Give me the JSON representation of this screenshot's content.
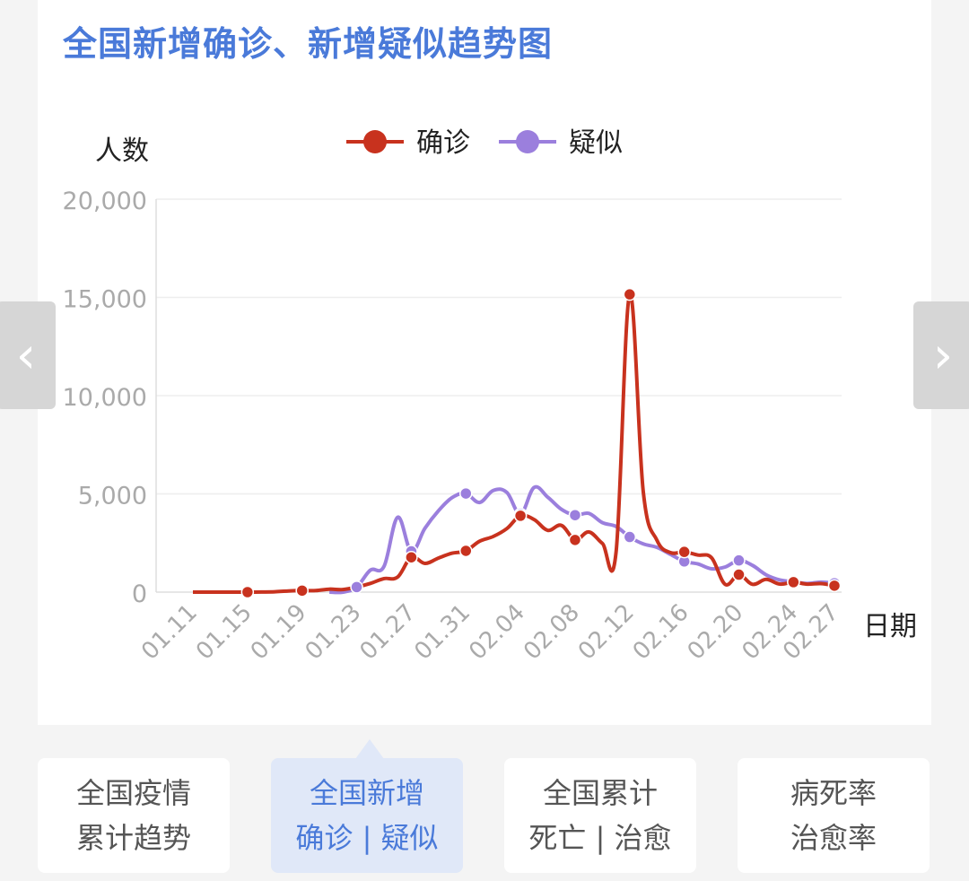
{
  "title": "全国新增确诊、新增疑似趋势图",
  "nav": {
    "prev_icon": "‹",
    "next_icon": "›"
  },
  "tabs": [
    {
      "line1": "全国疫情",
      "line2": "累计趋势",
      "active": false
    },
    {
      "line1": "全国新增",
      "line2": "确诊 | 疑似",
      "active": true
    },
    {
      "line1": "全国累计",
      "line2": "死亡 | 治愈",
      "active": false
    },
    {
      "line1": "病死率",
      "line2": "治愈率",
      "active": false
    }
  ],
  "colors": {
    "title": "#4a7ad9",
    "confirmed": "#c8321e",
    "suspected": "#9b7fdd",
    "axis_text": "#aaaaaa",
    "grid": "#eeeeee"
  },
  "chart_data": {
    "type": "line",
    "title": "",
    "ylabel": "人数",
    "xlabel": "日期",
    "ylim": [
      0,
      20000
    ],
    "yticks": [
      0,
      5000,
      10000,
      15000,
      20000
    ],
    "ytick_labels": [
      "0",
      "5,000",
      "10,000",
      "15,000",
      "20,000"
    ],
    "xtick_labels": [
      "01.11",
      "01.15",
      "01.19",
      "01.23",
      "01.27",
      "01.31",
      "02.04",
      "02.08",
      "02.12",
      "02.16",
      "02.20",
      "02.24",
      "02.27"
    ],
    "legend_position": "top-center",
    "grid": true,
    "series": [
      {
        "name": "确诊",
        "color": "#c8321e",
        "points": [
          [
            "01.11",
            0
          ],
          [
            "01.12",
            0
          ],
          [
            "01.13",
            0
          ],
          [
            "01.14",
            0
          ],
          [
            "01.15",
            0
          ],
          [
            "01.16",
            4
          ],
          [
            "01.17",
            17
          ],
          [
            "01.18",
            59
          ],
          [
            "01.19",
            77
          ],
          [
            "01.20",
            77
          ],
          [
            "01.21",
            149
          ],
          [
            "01.22",
            131
          ],
          [
            "01.23",
            259
          ],
          [
            "01.24",
            444
          ],
          [
            "01.25",
            688
          ],
          [
            "01.26",
            769
          ],
          [
            "01.27",
            1771
          ],
          [
            "01.28",
            1459
          ],
          [
            "01.29",
            1737
          ],
          [
            "01.30",
            1982
          ],
          [
            "01.31",
            2102
          ],
          [
            "02.01",
            2590
          ],
          [
            "02.02",
            2829
          ],
          [
            "02.03",
            3235
          ],
          [
            "02.04",
            3887
          ],
          [
            "02.05",
            3694
          ],
          [
            "02.06",
            3143
          ],
          [
            "02.07",
            3399
          ],
          [
            "02.08",
            2656
          ],
          [
            "02.09",
            3062
          ],
          [
            "02.10",
            2478
          ],
          [
            "02.11",
            2015
          ],
          [
            "02.12",
            15152
          ],
          [
            "02.13",
            5090
          ],
          [
            "02.14",
            2641
          ],
          [
            "02.15",
            2009
          ],
          [
            "02.16",
            2048
          ],
          [
            "02.17",
            1886
          ],
          [
            "02.18",
            1749
          ],
          [
            "02.19",
            394
          ],
          [
            "02.20",
            889
          ],
          [
            "02.21",
            397
          ],
          [
            "02.22",
            648
          ],
          [
            "02.23",
            409
          ],
          [
            "02.24",
            508
          ],
          [
            "02.25",
            406
          ],
          [
            "02.26",
            433
          ],
          [
            "02.27",
            327
          ]
        ],
        "markers": [
          "01.15",
          "01.19",
          "01.27",
          "01.31",
          "02.04",
          "02.08",
          "02.12",
          "02.16",
          "02.20",
          "02.24",
          "02.27"
        ]
      },
      {
        "name": "疑似",
        "color": "#9b7fdd",
        "points": [
          [
            "01.21",
            0
          ],
          [
            "01.22",
            0
          ],
          [
            "01.23",
            257
          ],
          [
            "01.24",
            1118
          ],
          [
            "01.25",
            1309
          ],
          [
            "01.26",
            3806
          ],
          [
            "01.27",
            2077
          ],
          [
            "01.28",
            3248
          ],
          [
            "01.29",
            4148
          ],
          [
            "01.30",
            4812
          ],
          [
            "01.31",
            5019
          ],
          [
            "02.01",
            4562
          ],
          [
            "02.02",
            5173
          ],
          [
            "02.03",
            5072
          ],
          [
            "02.04",
            3971
          ],
          [
            "02.05",
            5328
          ],
          [
            "02.06",
            4833
          ],
          [
            "02.07",
            4214
          ],
          [
            "02.08",
            3916
          ],
          [
            "02.09",
            4008
          ],
          [
            "02.10",
            3536
          ],
          [
            "02.11",
            3342
          ],
          [
            "02.12",
            2807
          ],
          [
            "02.13",
            2450
          ],
          [
            "02.14",
            2277
          ],
          [
            "02.15",
            1918
          ],
          [
            "02.16",
            1563
          ],
          [
            "02.17",
            1432
          ],
          [
            "02.18",
            1185
          ],
          [
            "02.19",
            1277
          ],
          [
            "02.20",
            1614
          ],
          [
            "02.21",
            1361
          ],
          [
            "02.22",
            882
          ],
          [
            "02.23",
            620
          ],
          [
            "02.24",
            530
          ],
          [
            "02.25",
            439
          ],
          [
            "02.26",
            508
          ],
          [
            "02.27",
            452
          ]
        ],
        "markers": [
          "01.23",
          "01.27",
          "01.31",
          "02.04",
          "02.08",
          "02.12",
          "02.16",
          "02.20",
          "02.24",
          "02.27"
        ]
      }
    ]
  }
}
